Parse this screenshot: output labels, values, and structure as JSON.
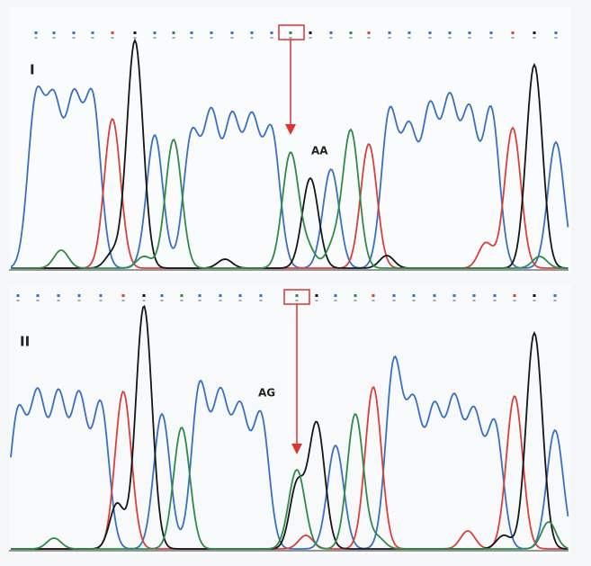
{
  "panels": [
    {
      "label": "I",
      "genotype": "AA"
    },
    {
      "label": "II",
      "genotype": "AG"
    }
  ]
}
